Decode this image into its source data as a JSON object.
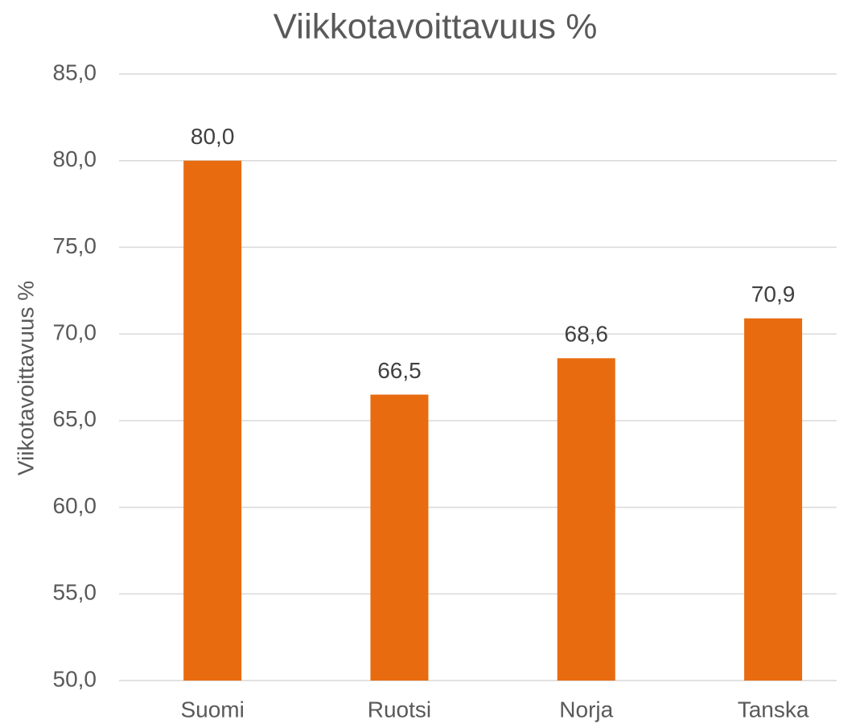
{
  "chart_data": {
    "type": "bar",
    "title": "Viikkotavoittavuus %",
    "y_label": "Viikotavoittavuus %",
    "categories": [
      "Suomi",
      "Ruotsi",
      "Norja",
      "Tanska"
    ],
    "values": [
      80.0,
      66.5,
      68.6,
      70.9
    ],
    "value_labels": [
      "80,0",
      "66,5",
      "68,6",
      "70,9"
    ],
    "color": "#e96b10",
    "ylim": [
      50,
      85
    ],
    "yticks": [
      {
        "value": 50,
        "label": "50,0"
      },
      {
        "value": 55,
        "label": "55,0"
      },
      {
        "value": 60,
        "label": "60,0"
      },
      {
        "value": 65,
        "label": "65,0"
      },
      {
        "value": 70,
        "label": "70,0"
      },
      {
        "value": 75,
        "label": "75,0"
      },
      {
        "value": 80,
        "label": "80,0"
      },
      {
        "value": 85,
        "label": "85,0"
      }
    ],
    "grid": true
  }
}
